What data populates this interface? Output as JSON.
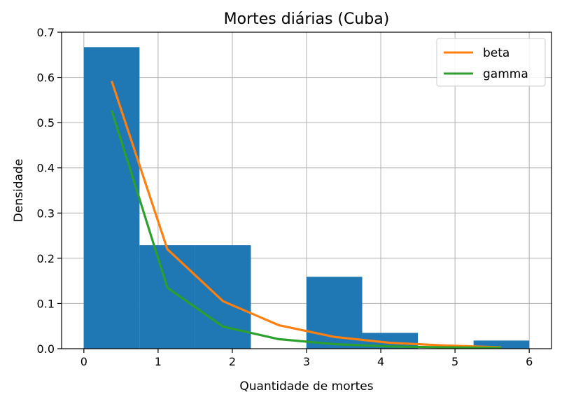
{
  "chart_data": {
    "type": "bar",
    "title": "Mortes diárias (Cuba)",
    "xlabel": "Quantidade de mortes",
    "ylabel": "Densidade",
    "xlim": [
      -0.3,
      6.3
    ],
    "ylim": [
      0,
      0.7
    ],
    "xticks": [
      "0",
      "1",
      "2",
      "3",
      "4",
      "5",
      "6"
    ],
    "yticks": [
      "0.0",
      "0.1",
      "0.2",
      "0.3",
      "0.4",
      "0.5",
      "0.6",
      "0.7"
    ],
    "grid": true,
    "legend_position": "top-right",
    "histogram": {
      "bin_edges": [
        0,
        0.75,
        1.5,
        2.25,
        3.0,
        3.75,
        4.5,
        5.25,
        6.0
      ],
      "density": [
        0.667,
        0.229,
        0.229,
        0.0,
        0.159,
        0.035,
        0.0,
        0.018
      ],
      "color": "#1f77b4"
    },
    "series": [
      {
        "name": "beta",
        "color": "#ff7f0e",
        "x": [
          0.375,
          1.125,
          1.875,
          2.625,
          3.375,
          4.125,
          4.875,
          5.625
        ],
        "values": [
          0.592,
          0.22,
          0.105,
          0.052,
          0.026,
          0.013,
          0.007,
          0.003
        ]
      },
      {
        "name": "gamma",
        "color": "#2ca02c",
        "x": [
          0.375,
          1.125,
          1.875,
          2.625,
          3.375,
          4.125,
          4.875,
          5.625
        ],
        "values": [
          0.527,
          0.135,
          0.049,
          0.021,
          0.01,
          0.005,
          0.003,
          0.002
        ]
      }
    ]
  }
}
